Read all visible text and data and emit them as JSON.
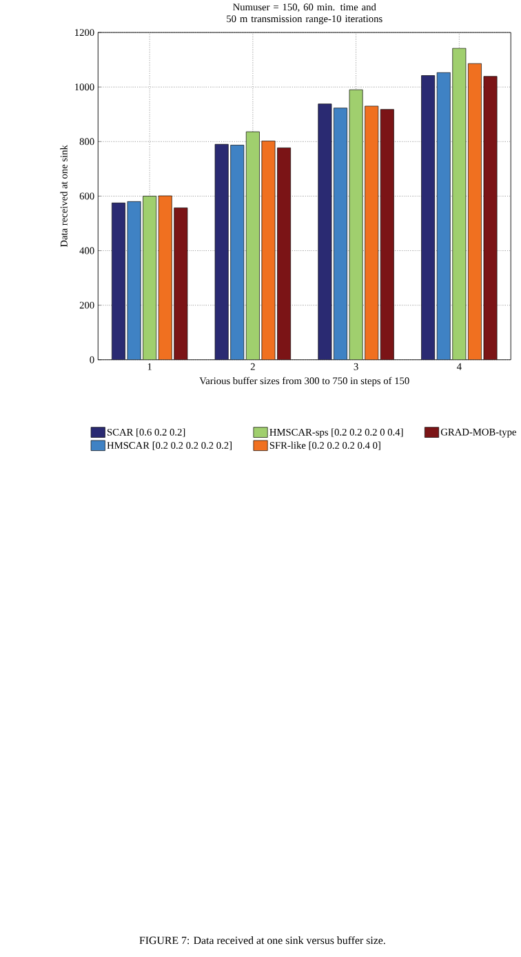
{
  "chart_data": {
    "type": "bar",
    "title": "Numuser = 150, 60 min. time and 50 m transmission range-10 iterations",
    "xlabel": "Various buffer sizes from 300 to 750 in steps of 150",
    "ylabel": "Data received at one sink",
    "categories": [
      "1",
      "2",
      "3",
      "4"
    ],
    "series": [
      {
        "name": "SCAR [0.6 0.2 0.2]",
        "color": "#2a2a72",
        "values": [
          575,
          790,
          938,
          1042
        ]
      },
      {
        "name": "HMSCAR [0.2 0.2 0.2 0.2 0.2]",
        "color": "#3f82c4",
        "values": [
          580,
          787,
          923,
          1053
        ]
      },
      {
        "name": "HMSCAR-sps [0.2 0.2 0.2 0 0.4]",
        "color": "#a0cf6e",
        "values": [
          600,
          836,
          990,
          1142
        ]
      },
      {
        "name": "SFR-like [0.2 0.2 0.2 0.4 0]",
        "color": "#f07020",
        "values": [
          601,
          802,
          930,
          1086
        ]
      },
      {
        "name": "GRAD-MOB-type",
        "color": "#7b1416",
        "values": [
          557,
          777,
          918,
          1039
        ]
      }
    ],
    "ylim": [
      0,
      1200
    ],
    "yticks": [
      0,
      200,
      400,
      600,
      800,
      1000,
      1200
    ],
    "grid": true,
    "legend": "bottom",
    "annotations": [
      "FIGURE 7: Data received at one sink versus buffer size."
    ]
  }
}
